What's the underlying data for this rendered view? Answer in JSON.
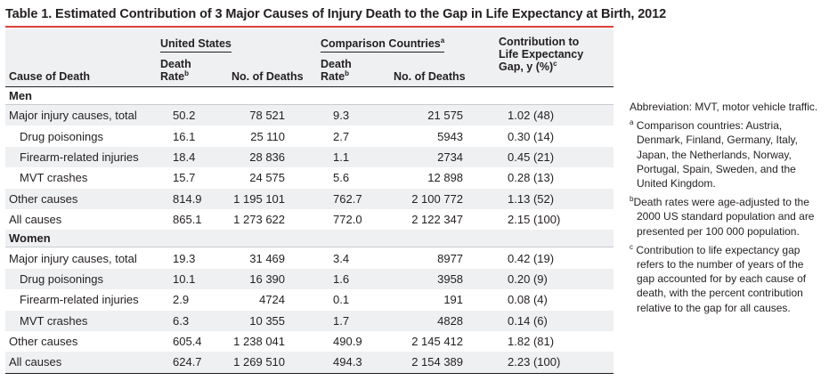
{
  "title": "Table 1. Estimated Contribution of 3 Major Causes of Injury Death to the Gap in Life Expectancy at Birth, 2012",
  "header": {
    "cause": "Cause of Death",
    "us_group": "United States",
    "cmp_group": "Comparison Countries",
    "cmp_group_sup": "a",
    "death_rate": "Death Rate",
    "death_rate_sup": "b",
    "num_deaths": "No. of Deaths",
    "contribution_line1": "Contribution to",
    "contribution_line2": "Life Expectancy",
    "contribution_line3": "Gap, y (%)",
    "contribution_sup": "c"
  },
  "sections": {
    "men": "Men",
    "women": "Women"
  },
  "rows": {
    "men": [
      {
        "cause": "Major injury causes, total",
        "us_rate": "50.2",
        "us_deaths": "78 521",
        "cmp_rate": "9.3",
        "cmp_deaths": "21 575",
        "contribution": "1.02 (48)"
      },
      {
        "cause": "Drug poisonings",
        "us_rate": "16.1",
        "us_deaths": "25 110",
        "cmp_rate": "2.7",
        "cmp_deaths": "5943",
        "contribution": "0.30 (14)"
      },
      {
        "cause": "Firearm-related injuries",
        "us_rate": "18.4",
        "us_deaths": "28 836",
        "cmp_rate": "1.1",
        "cmp_deaths": "2734",
        "contribution": "0.45 (21)"
      },
      {
        "cause": "MVT crashes",
        "us_rate": "15.7",
        "us_deaths": "24 575",
        "cmp_rate": "5.6",
        "cmp_deaths": "12 898",
        "contribution": "0.28 (13)"
      },
      {
        "cause": "Other causes",
        "us_rate": "814.9",
        "us_deaths": "1 195 101",
        "cmp_rate": "762.7",
        "cmp_deaths": "2 100 772",
        "contribution": "1.13 (52)"
      },
      {
        "cause": "All causes",
        "us_rate": "865.1",
        "us_deaths": "1 273 622",
        "cmp_rate": "772.0",
        "cmp_deaths": "2 122 347",
        "contribution": "2.15 (100)"
      }
    ],
    "women": [
      {
        "cause": "Major injury causes, total",
        "us_rate": "19.3",
        "us_deaths": "31 469",
        "cmp_rate": "3.4",
        "cmp_deaths": "8977",
        "contribution": "0.42 (19)"
      },
      {
        "cause": "Drug poisonings",
        "us_rate": "10.1",
        "us_deaths": "16 390",
        "cmp_rate": "1.6",
        "cmp_deaths": "3958",
        "contribution": "0.20 (9)"
      },
      {
        "cause": "Firearm-related injuries",
        "us_rate": "2.9",
        "us_deaths": "4724",
        "cmp_rate": "0.1",
        "cmp_deaths": "191",
        "contribution": "0.08 (4)"
      },
      {
        "cause": "MVT crashes",
        "us_rate": "6.3",
        "us_deaths": "10 355",
        "cmp_rate": "1.7",
        "cmp_deaths": "4828",
        "contribution": "0.14 (6)"
      },
      {
        "cause": "Other causes",
        "us_rate": "605.4",
        "us_deaths": "1 238 041",
        "cmp_rate": "490.9",
        "cmp_deaths": "2 145 412",
        "contribution": "1.82 (81)"
      },
      {
        "cause": "All causes",
        "us_rate": "624.7",
        "us_deaths": "1 269 510",
        "cmp_rate": "494.3",
        "cmp_deaths": "2 154 389",
        "contribution": "2.23 (100)"
      }
    ]
  },
  "notes": {
    "abbreviation": "Abbreviation: MVT, motor vehicle traffic.",
    "a_mark": "a",
    "a_text": "Comparison countries: Austria, Denmark, Finland, Germany, Italy, Japan, the Netherlands, Norway, Portugal, Spain, Sweden, and the United Kingdom.",
    "b_mark": "b",
    "b_text": "Death rates were age-adjusted to the 2000 US standard population and are presented per 100 000 population.",
    "c_mark": "c",
    "c_text": "Contribution to life expectancy gap refers to the number of years of the gap accounted for by each cause of death, with the percent contribution relative to the gap for all causes."
  }
}
